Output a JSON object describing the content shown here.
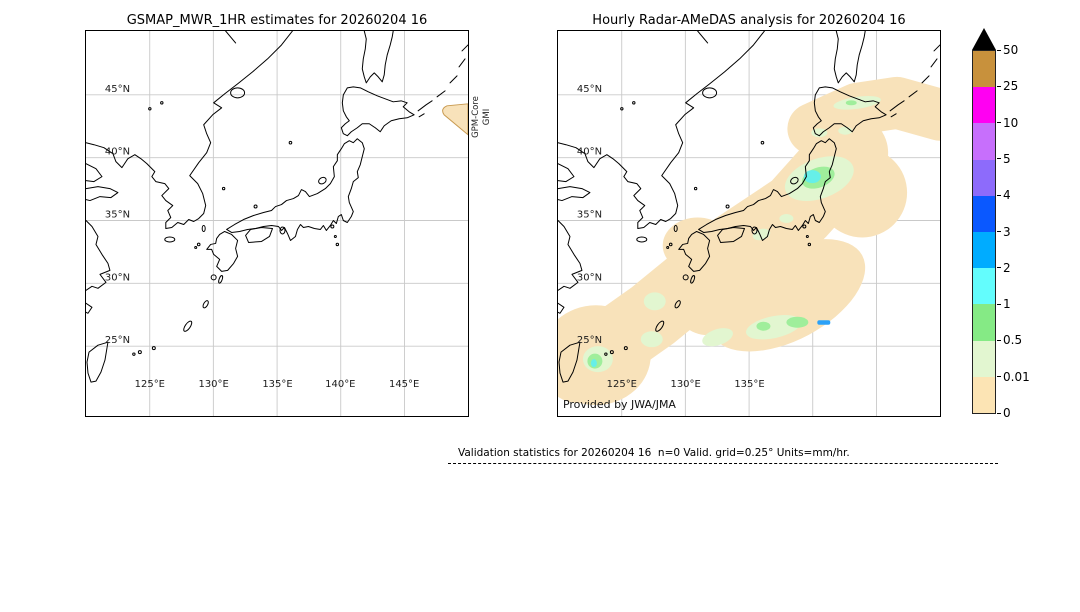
{
  "panels": [
    {
      "title": "GSMAP_MWR_1HR estimates for 20260204 16",
      "x_ticks": [
        "125°E",
        "130°E",
        "135°E",
        "140°E",
        "145°E"
      ],
      "y_ticks": [
        "45°N",
        "40°N",
        "35°N",
        "30°N",
        "25°N"
      ],
      "side_annotation_lines": [
        "GPM-Core",
        "GMI"
      ]
    },
    {
      "title": "Hourly Radar-AMeDAS analysis for 20260204 16",
      "x_ticks": [
        "125°E",
        "130°E",
        "135°E"
      ],
      "y_ticks": [
        "45°N",
        "40°N",
        "35°N",
        "30°N",
        "25°N"
      ],
      "credit": "Provided by JWA/JMA"
    }
  ],
  "colorbar": {
    "units": "mm/hr",
    "tick_labels": [
      "50",
      "25",
      "10",
      "5",
      "4",
      "3",
      "2",
      "1",
      "0.5",
      "0.01",
      "0"
    ],
    "segment_colors_top_to_bottom": [
      "#c8913c",
      "#ff00f2",
      "#c76ffc",
      "#8d6bfb",
      "#0a58ff",
      "#00acff",
      "#63fdfd",
      "#85ea85",
      "#e2f6d0",
      "#fce4b4"
    ],
    "overflow_color": "#000000"
  },
  "footer": {
    "text": "Validation statistics for 20260204 16  n=0 Valid. grid=0.25° Units=mm/hr."
  },
  "map_colors": {
    "swath": "#f8e2ba",
    "rain_light": "#e2f6d0",
    "rain_green": "#9fee9b",
    "rain_cyan": "#66efe8",
    "rain_blue": "#2ba1f8",
    "gridline": "#c9c9c9",
    "coastline": "#000000"
  },
  "chart_data": {
    "type": "heatmap",
    "units": "mm/hr",
    "colorbar_levels_mm_per_hr": [
      0,
      0.01,
      0.5,
      1,
      2,
      3,
      4,
      5,
      10,
      25,
      50
    ],
    "colorbar_colors_low_to_high": [
      "#fce4b4",
      "#e2f6d0",
      "#85ea85",
      "#63fdfd",
      "#00acff",
      "#0a58ff",
      "#8d6bfb",
      "#c76ffc",
      "#ff00f2",
      "#c8913c"
    ],
    "maps": [
      {
        "title": "GSMAP_MWR_1HR estimates for 20260204 16",
        "satellite": "GPM-Core GMI",
        "lon_range_deg_e": [
          120,
          150
        ],
        "lat_range_deg_n": [
          19.5,
          50
        ],
        "grid_spacing_deg": 5,
        "data_coverage": "almost no data: single 0-0.01 mm/hr swath-edge wedge near 148-150E, 42-44.5N at panel right edge"
      },
      {
        "title": "Hourly Radar-AMeDAS analysis for 20260204 16",
        "source": "JWA/JMA",
        "lon_range_deg_e": [
          120,
          150
        ],
        "lat_range_deg_n": [
          19.5,
          50
        ],
        "precipitation": "broad SW-NE band of 0-0.01 mm/hr from Taiwan/Ryukyu Islands across Kyushu, Shikoku, Honshu and Hokkaido to the Kurils; 0.01-1 mm/hr patches on NW Tohoku coast (~139-141E, 38-39.5N), south of Kii Peninsula (~133-136E, 32-33N), near Taiwan (~122E, 25N) and along north Hokkaido; 1-2 mm/hr cores near 139.5E/38.7N and 122E/25N; small 2-3 mm/hr streak near 135.5E/32.6N"
      }
    ]
  }
}
